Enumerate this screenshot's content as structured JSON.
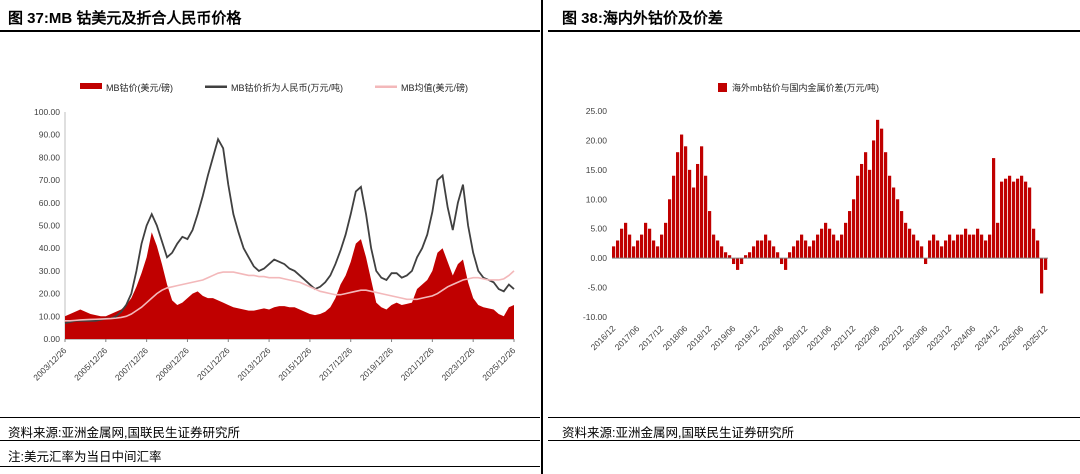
{
  "left_panel": {
    "title": "图 37:MB 钴美元及折合人民币价格",
    "source": "资料来源:亚洲金属网,国联民生证券研究所",
    "note": "注:美元汇率为当日中间汇率"
  },
  "right_panel": {
    "title": "图 38:海内外钴价及价差",
    "source": "资料来源:亚洲金属网,国联民生证券研究所"
  },
  "colors": {
    "accent_red": "#C00000",
    "dark_line": "#404040",
    "pink_line": "#F3B8BA",
    "axis": "#808080",
    "tick_text": "#404040"
  },
  "chart_data": [
    {
      "type": "area-line",
      "title": "图 37:MB 钴美元及折合人民币价格",
      "legend_position": "top",
      "ylim": [
        0,
        100
      ],
      "y_tick_step": 10,
      "x_tick_labels": [
        "2003/12/26",
        "2005/12/26",
        "2007/12/26",
        "2009/12/26",
        "2011/12/26",
        "2013/12/26",
        "2015/12/26",
        "2017/12/26",
        "2019/12/26",
        "2021/12/26",
        "2023/12/26",
        "2025/12/26"
      ],
      "x_unit": "quarterly points from 2003/12 to 2025/12",
      "series": [
        {
          "name": "MB钴价(美元/磅)",
          "style": "area",
          "color": "#C00000",
          "values": [
            10,
            11,
            12,
            13,
            12,
            11,
            10.5,
            10,
            10,
            11,
            12,
            13,
            15,
            18,
            23,
            29,
            36,
            47,
            41,
            33,
            24,
            17,
            15,
            16,
            18,
            20,
            21,
            19,
            18,
            18,
            17,
            16,
            15,
            14,
            13.5,
            13,
            12.5,
            12.5,
            13,
            13.5,
            13,
            14,
            14.5,
            14.5,
            14,
            14,
            13,
            12,
            11,
            10.5,
            11,
            12,
            14,
            18,
            24,
            28,
            34,
            42,
            44,
            36,
            26,
            16,
            14,
            13,
            15,
            16,
            15,
            15.5,
            16,
            22,
            24,
            26,
            30,
            38,
            40,
            34,
            28,
            33,
            35,
            25,
            18,
            15,
            14,
            13.5,
            13,
            11,
            10,
            14,
            15
          ]
        },
        {
          "name": "MB钴价折为人民币(万元/吨)",
          "style": "line",
          "color": "#404040",
          "values": [
            7,
            7.5,
            8,
            8,
            8,
            8,
            8,
            8.5,
            9,
            9,
            10,
            12,
            15,
            20,
            30,
            42,
            50,
            55,
            50,
            43,
            36,
            38,
            42,
            45,
            44,
            48,
            55,
            63,
            72,
            80,
            88,
            84,
            68,
            55,
            47,
            40,
            36,
            32,
            30,
            31,
            33,
            35,
            34,
            33,
            31,
            30,
            28,
            26,
            24,
            22,
            23,
            25,
            28,
            33,
            39,
            46,
            55,
            65,
            67,
            55,
            40,
            30,
            27,
            26,
            29,
            29,
            27,
            28,
            30,
            36,
            40,
            46,
            56,
            70,
            72,
            58,
            48,
            60,
            68,
            50,
            38,
            30,
            27,
            26,
            25,
            22,
            21,
            24,
            22
          ]
        },
        {
          "name": "MB均值(美元/磅)",
          "style": "line",
          "color": "#F3B8BA",
          "values": [
            8,
            8,
            8.2,
            8.4,
            8.5,
            8.6,
            8.7,
            8.8,
            8.9,
            9,
            9.2,
            9.5,
            10,
            11,
            12.5,
            14,
            16,
            18,
            20,
            21.5,
            22.5,
            23,
            23.5,
            24,
            24.5,
            25,
            25.5,
            26,
            27,
            28,
            29,
            29.5,
            29.5,
            29.5,
            29,
            28.5,
            28,
            28,
            27.5,
            27.5,
            27,
            27,
            27,
            26.5,
            26,
            25.5,
            25,
            24,
            23,
            22,
            21,
            20.5,
            20,
            19.5,
            19.5,
            20,
            20.5,
            21,
            21.5,
            21.5,
            21,
            20.5,
            20,
            19.5,
            19,
            18.5,
            18,
            17.5,
            17.5,
            17.5,
            18,
            18.5,
            19,
            20,
            21.5,
            23,
            24,
            25,
            26,
            26.5,
            27,
            27,
            26.5,
            26,
            26,
            26,
            26.5,
            28,
            30
          ]
        }
      ]
    },
    {
      "type": "bar",
      "title": "图 38:海内外钴价及价差",
      "legend_position": "top",
      "ylim": [
        -10,
        25
      ],
      "y_tick_step": 5,
      "x_tick_labels": [
        "2016/12",
        "2017/06",
        "2017/12",
        "2018/06",
        "2018/12",
        "2019/06",
        "2019/12",
        "2020/06",
        "2020/12",
        "2021/06",
        "2021/12",
        "2022/06",
        "2022/12",
        "2023/06",
        "2023/12",
        "2024/06",
        "2024/12",
        "2025/06",
        "2025/12"
      ],
      "x_unit": "monthly points from 2016/12 to 2025/12, tick every 6 months",
      "series": [
        {
          "name": "海外mb钴价与国内金属价差(万元/吨)",
          "style": "bar",
          "color": "#C00000",
          "values": [
            2,
            3,
            5,
            6,
            4,
            2,
            3,
            4,
            6,
            5,
            3,
            2,
            4,
            6,
            10,
            14,
            18,
            21,
            19,
            15,
            12,
            16,
            19,
            14,
            8,
            4,
            3,
            2,
            1,
            0.5,
            -1,
            -2,
            -1,
            0.5,
            1,
            2,
            3,
            3,
            4,
            3,
            2,
            1,
            -1,
            -2,
            1,
            2,
            3,
            4,
            3,
            2,
            3,
            4,
            5,
            6,
            5,
            4,
            3,
            4,
            6,
            8,
            10,
            14,
            16,
            18,
            15,
            20,
            23.5,
            22,
            18,
            14,
            12,
            10,
            8,
            6,
            5,
            4,
            3,
            2,
            -1,
            3,
            4,
            3,
            2,
            3,
            4,
            3,
            4,
            4,
            5,
            4,
            4,
            5,
            4,
            3,
            4,
            17,
            6,
            13,
            13.5,
            14,
            13,
            13.5,
            14,
            13,
            12,
            5,
            3,
            -6,
            -2
          ]
        }
      ]
    }
  ]
}
